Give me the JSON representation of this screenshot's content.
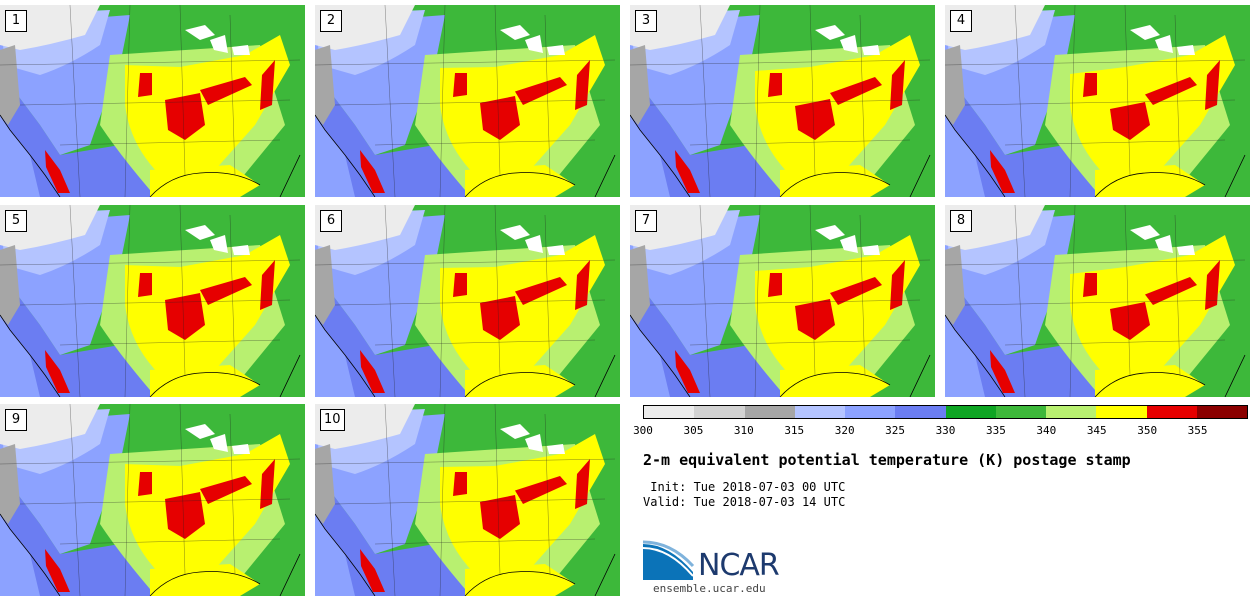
{
  "members": [
    "1",
    "2",
    "3",
    "4",
    "5",
    "6",
    "7",
    "8",
    "9",
    "10"
  ],
  "colorbar": {
    "colors": [
      "#ececec",
      "#d2d2d2",
      "#a6a6a6",
      "#b4c4ff",
      "#8ca2ff",
      "#6b7df2",
      "#0ea523",
      "#3db83a",
      "#b8f070",
      "#ffff00",
      "#e60000",
      "#8b0000"
    ],
    "ticks": [
      "300",
      "305",
      "310",
      "315",
      "320",
      "325",
      "330",
      "335",
      "340",
      "345",
      "350",
      "355"
    ]
  },
  "title": "2-m equivalent potential temperature (K) postage stamp",
  "init": " Init: Tue 2018-07-03 00 UTC",
  "valid": "Valid: Tue 2018-07-03 14 UTC",
  "logo": {
    "text": "NCAR",
    "url": "ensemble.ucar.edu"
  }
}
